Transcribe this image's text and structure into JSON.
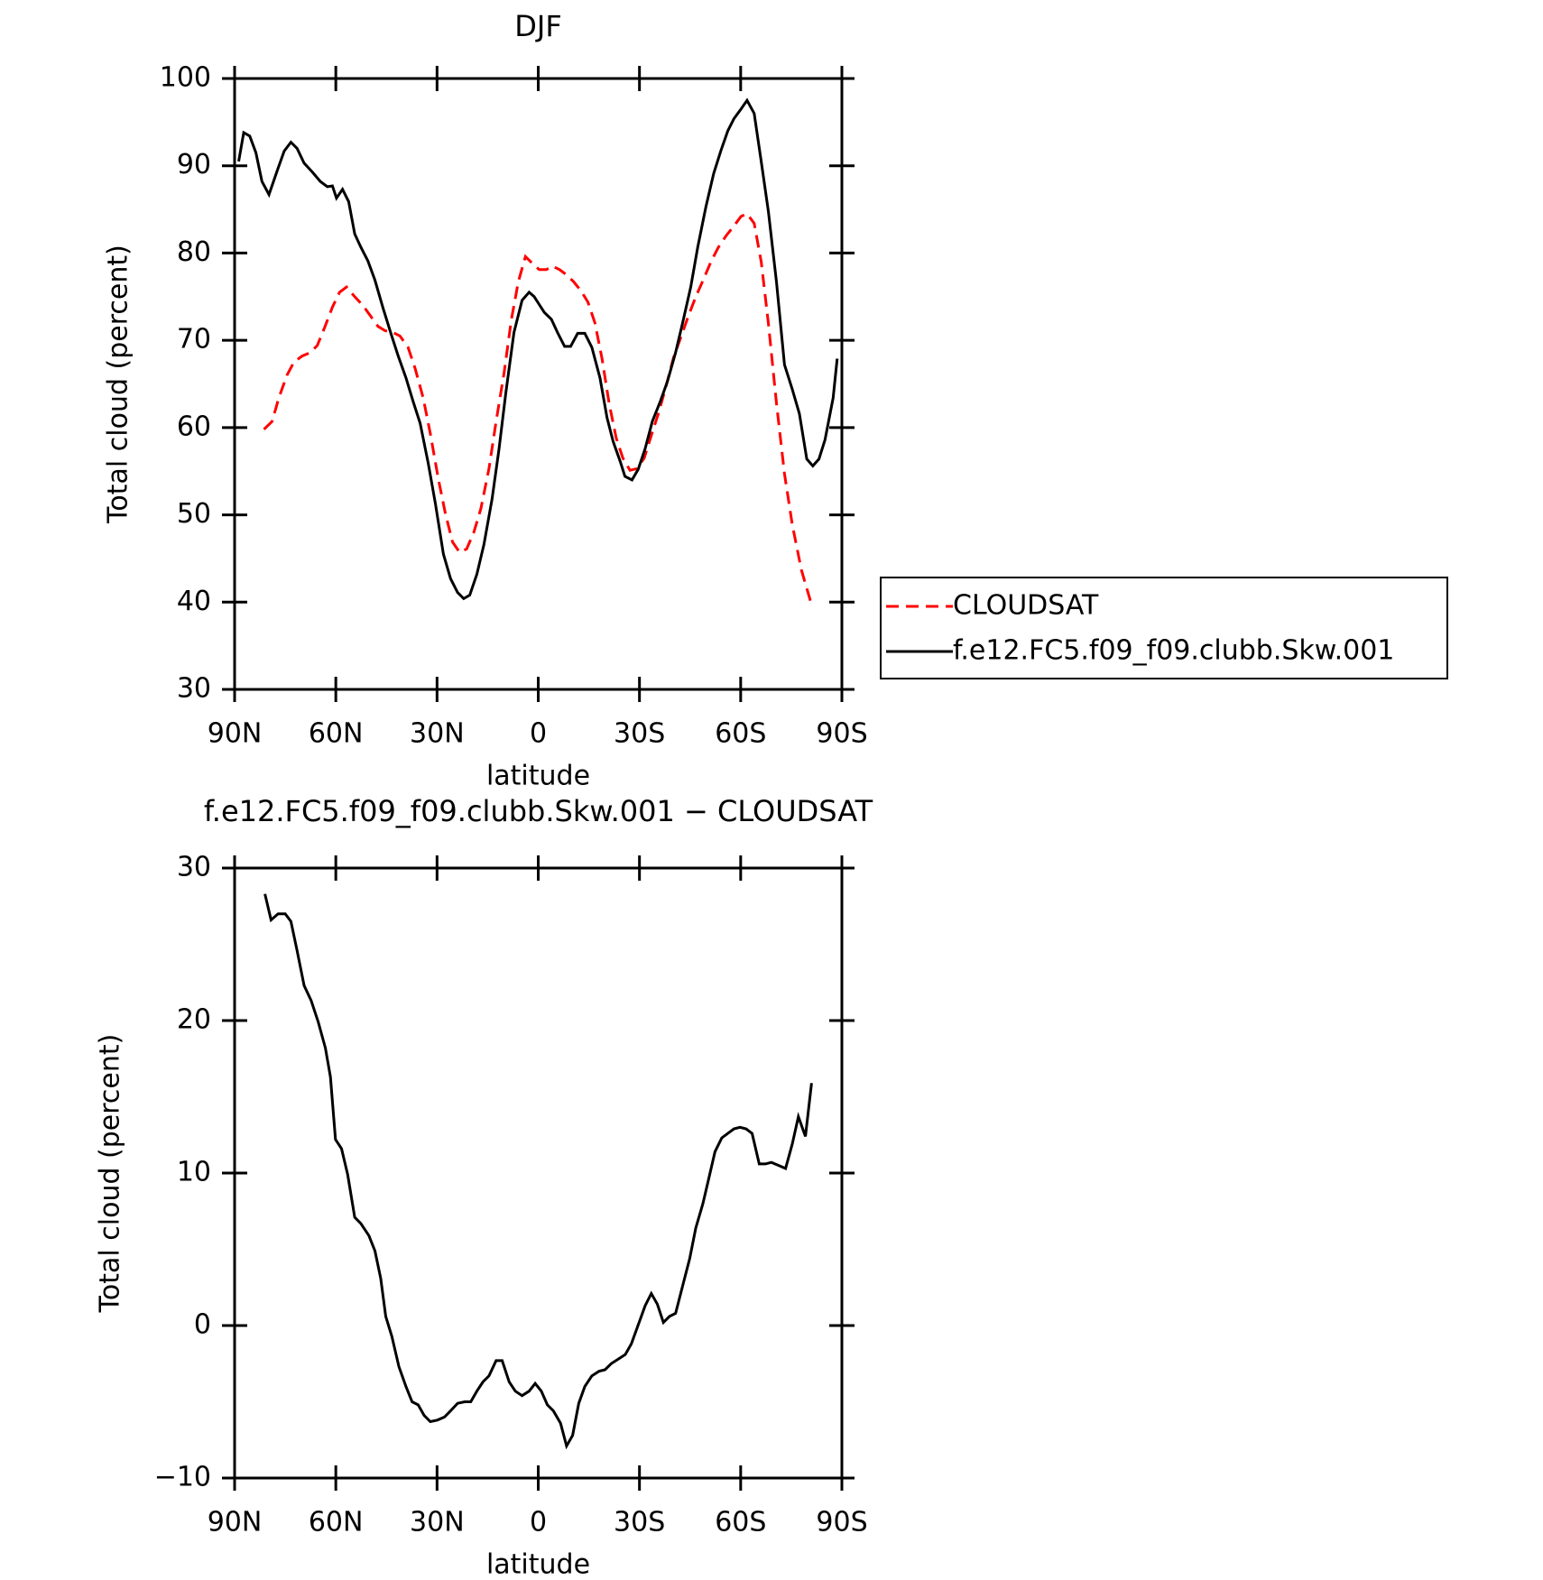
{
  "chart_data": [
    {
      "type": "line",
      "title": "DJF",
      "xlabel": "latitude",
      "ylabel": "Total cloud (percent)",
      "xlim": [
        90,
        -90
      ],
      "xticks": [
        {
          "value": 90,
          "label": "90N"
        },
        {
          "value": 60,
          "label": "60N"
        },
        {
          "value": 30,
          "label": "30N"
        },
        0,
        {
          "value": -30,
          "label": "30S"
        },
        {
          "value": -60,
          "label": "60S"
        },
        {
          "value": -90,
          "label": "90S"
        }
      ],
      "ylim": [
        30,
        100
      ],
      "yticks": [
        30,
        40,
        50,
        60,
        70,
        80,
        90,
        100
      ],
      "legend": "right",
      "series": [
        {
          "name": "CLOUDSAT",
          "color": "#ff0000",
          "linestyle": "dashed",
          "x": [
            81.3,
            78.9,
            76.9,
            74.5,
            72.4,
            70.0,
            67.6,
            65.5,
            63.4,
            61.0,
            58.9,
            56.8,
            54.4,
            52.0,
            49.9,
            47.5,
            45.4,
            43.1,
            41.0,
            38.6,
            36.5,
            34.1,
            32.0,
            29.6,
            27.5,
            25.4,
            23.3,
            21.2,
            19.1,
            17.0,
            14.6,
            12.5,
            10.1,
            8.0,
            5.9,
            3.8,
            1.7,
            -0.3,
            -2.4,
            -4.2,
            -6.3,
            -8.4,
            -10.5,
            -12.6,
            -14.7,
            -16.8,
            -18.9,
            -21.0,
            -23.1,
            -25.1,
            -27.2,
            -29.3,
            -31.4,
            -33.5,
            -35.6,
            -37.7,
            -40.1,
            -42.2,
            -44.6,
            -46.7,
            -49.1,
            -51.2,
            -53.3,
            -55.7,
            -57.8,
            -60.1,
            -61.9,
            -64.0,
            -66.1,
            -68.2,
            -70.6,
            -73.0,
            -75.3,
            -78.0,
            -81.0
          ],
          "values": [
            59.8,
            60.7,
            63.4,
            66.0,
            67.5,
            68.2,
            68.6,
            69.4,
            71.4,
            73.8,
            75.5,
            76.1,
            75.0,
            74.0,
            72.9,
            71.6,
            71.1,
            70.9,
            70.5,
            69.2,
            66.8,
            63.4,
            59.3,
            54.1,
            50.1,
            46.9,
            45.7,
            46.1,
            48.0,
            50.7,
            55.3,
            60.7,
            66.3,
            72.3,
            76.7,
            79.6,
            78.8,
            78.1,
            78.1,
            78.5,
            78.1,
            77.5,
            76.7,
            75.7,
            74.4,
            72.0,
            67.9,
            62.8,
            58.8,
            56.5,
            55.1,
            55.3,
            56.5,
            59.1,
            61.6,
            64.5,
            68.0,
            70.3,
            72.9,
            75.0,
            77.1,
            79.0,
            80.6,
            82.0,
            83.0,
            84.2,
            84.5,
            83.4,
            79.0,
            72.0,
            62.8,
            54.7,
            48.9,
            43.7,
            39.7
          ]
        },
        {
          "name": "f.e12.FC5.f09_f09.clubb.Skw.001",
          "color": "#000000",
          "linestyle": "solid",
          "x": [
            88.8,
            87.3,
            85.5,
            83.7,
            81.9,
            79.8,
            77.4,
            75.3,
            73.3,
            71.5,
            69.4,
            67.0,
            64.6,
            62.5,
            61.0,
            59.8,
            58.0,
            56.2,
            54.4,
            52.6,
            50.5,
            48.4,
            46.0,
            43.6,
            41.6,
            39.2,
            37.1,
            35.0,
            32.6,
            30.5,
            28.1,
            26.0,
            23.9,
            22.1,
            20.3,
            18.2,
            16.1,
            13.7,
            11.6,
            9.6,
            7.2,
            4.8,
            2.7,
            1.2,
            -0.3,
            -1.8,
            -3.9,
            -5.7,
            -7.8,
            -9.6,
            -11.7,
            -13.8,
            -15.9,
            -18.3,
            -20.4,
            -22.2,
            -24.3,
            -25.7,
            -27.8,
            -29.6,
            -31.7,
            -33.8,
            -36.2,
            -38.3,
            -40.7,
            -42.8,
            -45.2,
            -47.3,
            -49.7,
            -52.0,
            -54.1,
            -56.2,
            -58.0,
            -60.1,
            -61.9,
            -64.0,
            -66.1,
            -68.2,
            -70.6,
            -73.0,
            -75.3,
            -77.4,
            -79.6,
            -81.4,
            -83.2,
            -85.0,
            -87.4,
            -88.6
          ],
          "values": [
            90.5,
            93.8,
            93.4,
            91.5,
            88.2,
            86.7,
            89.4,
            91.7,
            92.7,
            92.0,
            90.3,
            89.3,
            88.2,
            87.6,
            87.7,
            86.3,
            87.3,
            85.9,
            82.2,
            80.7,
            79.1,
            76.9,
            73.7,
            70.7,
            68.3,
            65.7,
            63.0,
            60.5,
            55.9,
            51.3,
            45.5,
            42.7,
            41.1,
            40.4,
            40.8,
            43.2,
            46.6,
            51.8,
            57.6,
            64.0,
            70.9,
            74.6,
            75.5,
            75.0,
            74.1,
            73.2,
            72.4,
            70.9,
            69.3,
            69.3,
            70.8,
            70.8,
            69.2,
            65.7,
            61.1,
            58.4,
            56.1,
            54.4,
            54.0,
            55.2,
            57.6,
            60.7,
            63.0,
            65.3,
            68.6,
            72.0,
            76.1,
            80.7,
            85.3,
            89.1,
            91.7,
            94.0,
            95.4,
            96.5,
            97.5,
            96.0,
            90.5,
            84.8,
            76.7,
            67.2,
            64.4,
            61.6,
            56.4,
            55.6,
            56.4,
            58.6,
            63.4,
            67.9
          ]
        }
      ]
    },
    {
      "type": "line",
      "title": "f.e12.FC5.f09_f09.clubb.Skw.001 − CLOUDSAT",
      "xlabel": "latitude",
      "ylabel": "Total cloud (percent)",
      "xlim": [
        90,
        -90
      ],
      "xticks": [
        {
          "value": 90,
          "label": "90N"
        },
        {
          "value": 60,
          "label": "60N"
        },
        {
          "value": 30,
          "label": "30N"
        },
        0,
        {
          "value": -30,
          "label": "30S"
        },
        {
          "value": -60,
          "label": "60S"
        },
        {
          "value": -90,
          "label": "90S"
        }
      ],
      "ylim": [
        -10,
        30
      ],
      "yticks": [
        {
          "value": -10,
          "label": "−10"
        },
        0,
        10,
        20,
        30
      ],
      "color": "#000000",
      "x": [
        81.0,
        79.2,
        77.1,
        75.0,
        73.3,
        71.5,
        69.4,
        67.3,
        65.2,
        63.1,
        61.6,
        60.1,
        58.3,
        56.5,
        54.4,
        52.6,
        50.2,
        48.4,
        46.7,
        45.2,
        43.4,
        41.3,
        39.2,
        37.4,
        35.6,
        33.8,
        32.0,
        29.9,
        27.8,
        26.0,
        23.9,
        21.8,
        20.0,
        18.2,
        16.4,
        14.6,
        12.5,
        10.7,
        8.6,
        6.8,
        4.8,
        2.7,
        0.9,
        -0.9,
        -2.7,
        -4.5,
        -6.6,
        -8.4,
        -10.2,
        -12.0,
        -13.8,
        -15.9,
        -18.0,
        -19.8,
        -21.6,
        -23.7,
        -25.8,
        -27.6,
        -29.4,
        -31.7,
        -33.5,
        -35.3,
        -37.1,
        -38.9,
        -40.7,
        -42.8,
        -44.9,
        -46.7,
        -48.8,
        -50.6,
        -52.4,
        -54.4,
        -56.2,
        -58.0,
        -59.8,
        -61.6,
        -63.4,
        -65.5,
        -67.3,
        -69.1,
        -71.2,
        -73.3,
        -75.3,
        -77.1,
        -79.2,
        -81.0
      ],
      "values": [
        28.3,
        26.6,
        27.0,
        27.0,
        26.5,
        24.6,
        22.3,
        21.3,
        19.9,
        18.2,
        16.3,
        12.2,
        11.6,
        9.9,
        7.1,
        6.7,
        5.9,
        4.9,
        3.1,
        0.6,
        -0.7,
        -2.7,
        -4.0,
        -5.0,
        -5.2,
        -5.9,
        -6.3,
        -6.2,
        -6.0,
        -5.6,
        -5.1,
        -5.0,
        -5.0,
        -4.3,
        -3.7,
        -3.3,
        -2.3,
        -2.3,
        -3.7,
        -4.3,
        -4.6,
        -4.3,
        -3.8,
        -4.3,
        -5.2,
        -5.6,
        -6.4,
        -7.9,
        -7.2,
        -5.1,
        -4.0,
        -3.3,
        -3.0,
        -2.9,
        -2.5,
        -2.2,
        -1.9,
        -1.2,
        -0.1,
        1.3,
        2.1,
        1.4,
        0.2,
        0.6,
        0.8,
        2.6,
        4.4,
        6.4,
        8.0,
        9.7,
        11.4,
        12.3,
        12.6,
        12.9,
        13.0,
        12.9,
        12.6,
        10.6,
        10.6,
        10.7,
        10.5,
        10.3,
        11.9,
        13.7,
        12.4,
        15.9
      ]
    }
  ]
}
